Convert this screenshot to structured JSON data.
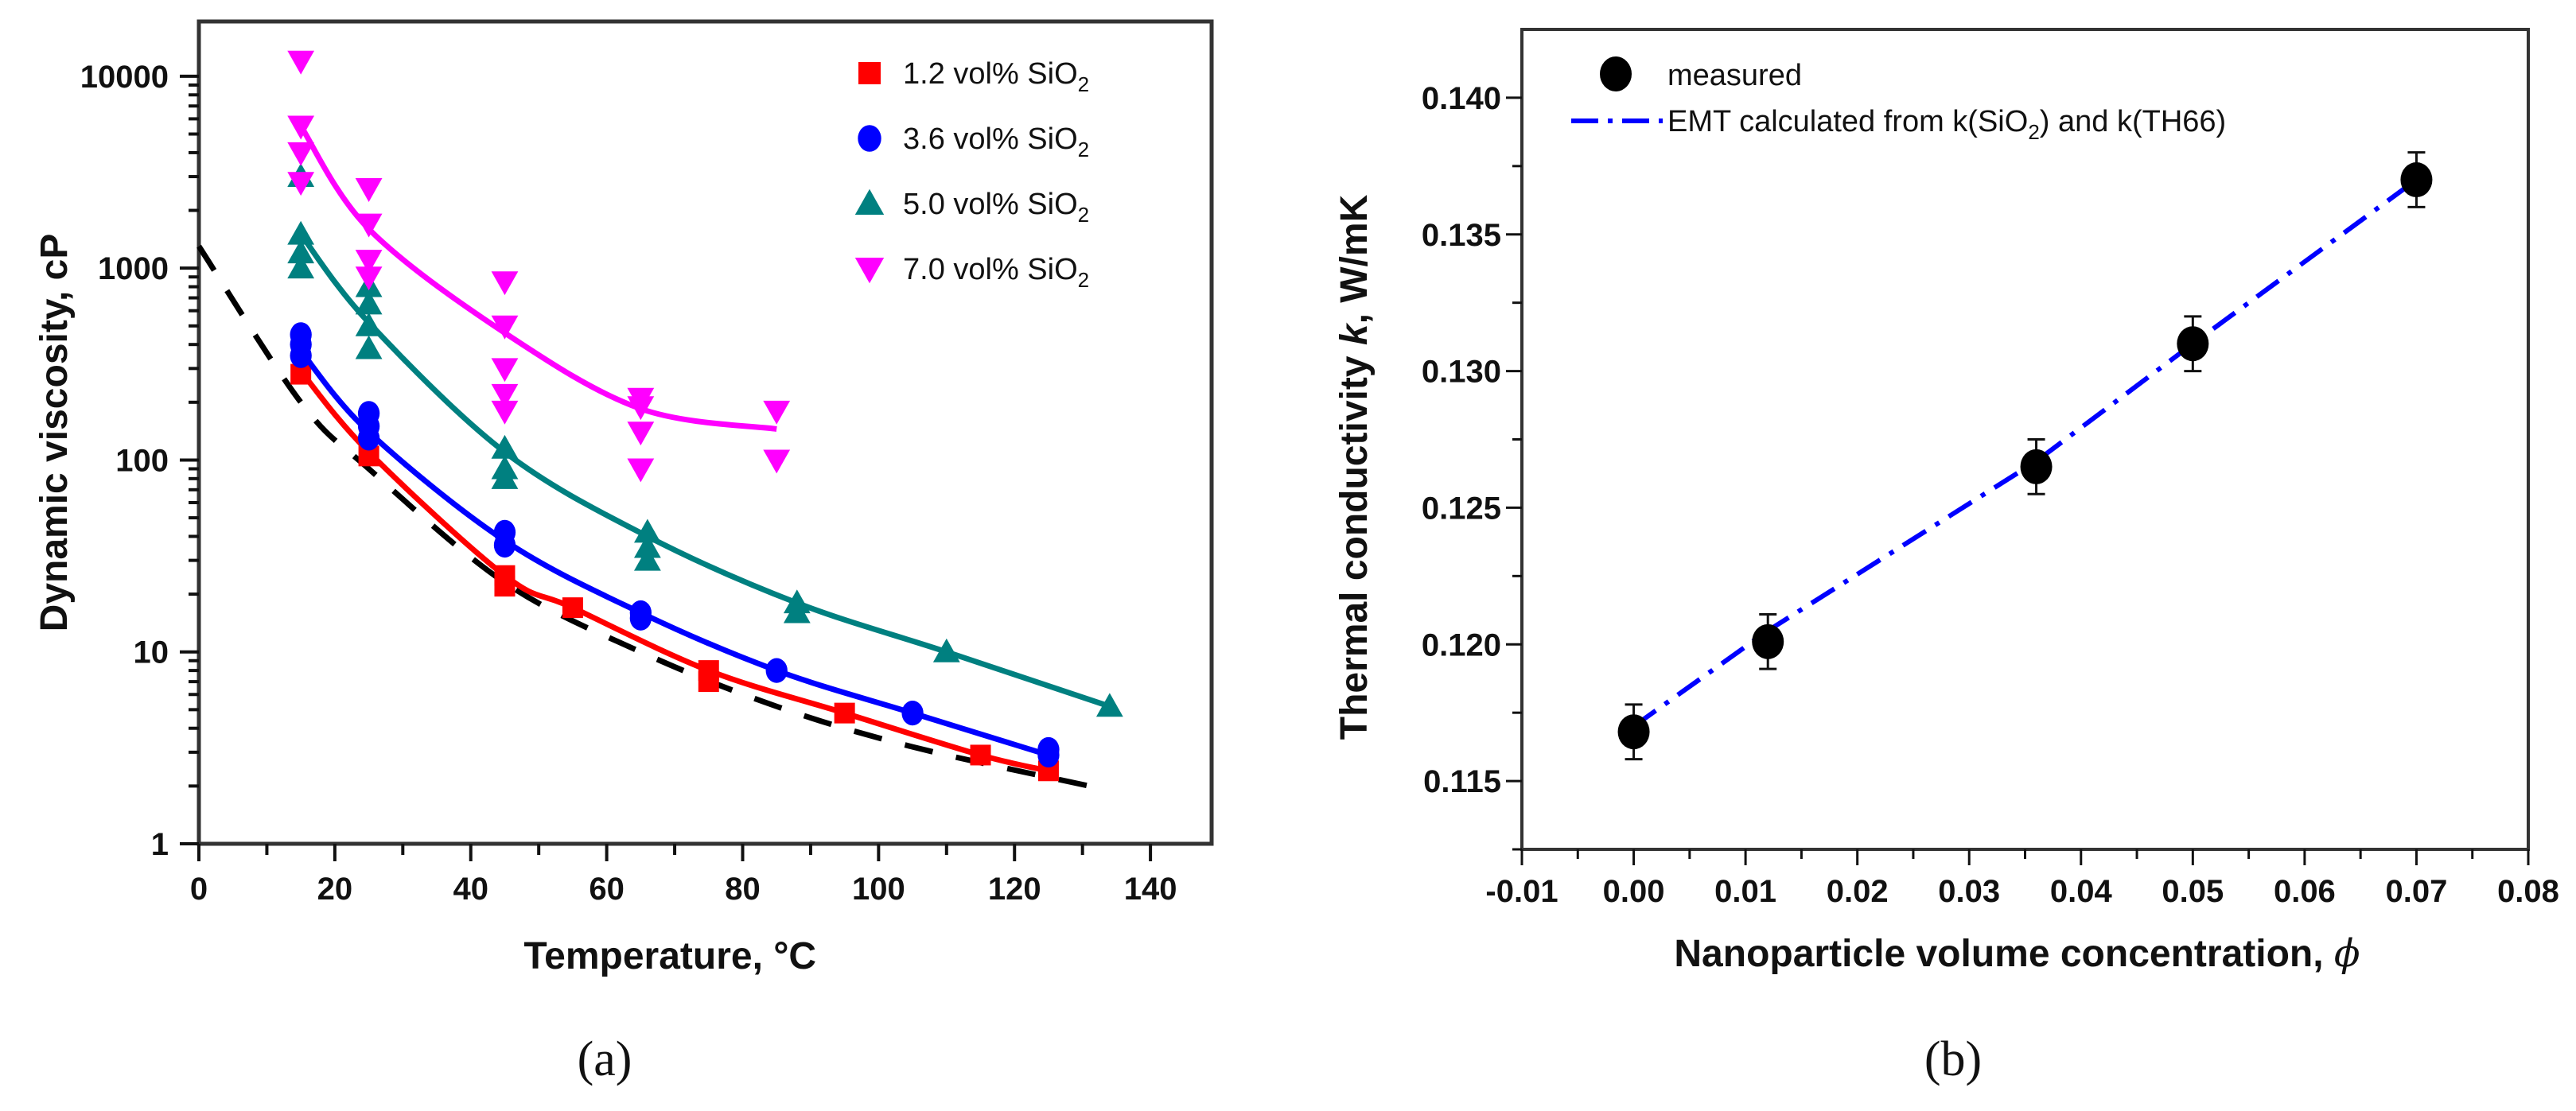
{
  "chart_data": [
    {
      "type": "scatter",
      "panel_label": "(a)",
      "title": "",
      "xlabel": "Temperature, °C",
      "ylabel": "Dynamic viscosity, cP",
      "xlim": [
        0,
        149
      ],
      "ylim": [
        1,
        19300
      ],
      "yscale": "log",
      "x_ticks": [
        0,
        20,
        40,
        60,
        80,
        100,
        120,
        140
      ],
      "y_ticks": [
        1,
        10,
        100,
        1000,
        10000
      ],
      "y_tick_labels": [
        "1",
        "10",
        "100",
        "1000",
        "10000"
      ],
      "grid": false,
      "legend_position": "top-right",
      "series": [
        {
          "name": "1.2 vol% SiO",
          "sub": "2",
          "color": "#ff0000",
          "marker": "square",
          "points": [
            [
              15,
              280
            ],
            [
              25,
              105
            ],
            [
              45,
              25
            ],
            [
              45,
              22
            ],
            [
              55,
              17
            ],
            [
              75,
              8
            ],
            [
              75,
              7
            ],
            [
              95,
              4.8
            ],
            [
              115,
              2.9
            ],
            [
              125,
              2.4
            ]
          ],
          "fit": [
            [
              15,
              290
            ],
            [
              25,
              110
            ],
            [
              45,
              25
            ],
            [
              55,
              17
            ],
            [
              75,
              8
            ],
            [
              95,
              4.8
            ],
            [
              115,
              2.9
            ],
            [
              125,
              2.4
            ]
          ]
        },
        {
          "name": "3.6 vol% SiO",
          "sub": "2",
          "color": "#0000ff",
          "marker": "circle",
          "points": [
            [
              15,
              450
            ],
            [
              15,
              400
            ],
            [
              15,
              350
            ],
            [
              25,
              175
            ],
            [
              25,
              150
            ],
            [
              25,
              130
            ],
            [
              45,
              42
            ],
            [
              45,
              36
            ],
            [
              65,
              16
            ],
            [
              65,
              15
            ],
            [
              85,
              8
            ],
            [
              105,
              4.8
            ],
            [
              125,
              3.1
            ],
            [
              125,
              2.9
            ]
          ],
          "fit": [
            [
              15,
              370
            ],
            [
              25,
              140
            ],
            [
              45,
              38
            ],
            [
              65,
              16
            ],
            [
              85,
              8
            ],
            [
              105,
              4.8
            ],
            [
              125,
              2.9
            ]
          ]
        },
        {
          "name": "5.0 vol% SiO",
          "sub": "2",
          "color": "#008080",
          "marker": "triangle-up",
          "points": [
            [
              15,
              3000
            ],
            [
              15,
              1500
            ],
            [
              15,
              1200
            ],
            [
              15,
              1000
            ],
            [
              25,
              800
            ],
            [
              25,
              650
            ],
            [
              25,
              500
            ],
            [
              25,
              380
            ],
            [
              45,
              115
            ],
            [
              45,
              90
            ],
            [
              45,
              80
            ],
            [
              66,
              42
            ],
            [
              66,
              35
            ],
            [
              66,
              30
            ],
            [
              88,
              18
            ],
            [
              88,
              16
            ],
            [
              110,
              10
            ],
            [
              134,
              5.2
            ]
          ],
          "fit": [
            [
              15,
              1500
            ],
            [
              25,
              520
            ],
            [
              45,
              110
            ],
            [
              66,
              40
            ],
            [
              88,
              18
            ],
            [
              110,
              10
            ],
            [
              134,
              5.2
            ]
          ]
        },
        {
          "name": "7.0 vol% SiO",
          "sub": "2",
          "color": "#ff00ff",
          "marker": "triangle-down",
          "points": [
            [
              15,
              12000
            ],
            [
              15,
              5500
            ],
            [
              15,
              4000
            ],
            [
              15,
              2800
            ],
            [
              25,
              2600
            ],
            [
              25,
              1700
            ],
            [
              25,
              1100
            ],
            [
              25,
              900
            ],
            [
              45,
              850
            ],
            [
              45,
              500
            ],
            [
              45,
              300
            ],
            [
              45,
              220
            ],
            [
              45,
              180
            ],
            [
              65,
              210
            ],
            [
              65,
              190
            ],
            [
              65,
              140
            ],
            [
              65,
              90
            ],
            [
              85,
              180
            ],
            [
              85,
              100
            ]
          ],
          "fit": [
            [
              15,
              5500
            ],
            [
              25,
              1600
            ],
            [
              45,
              460
            ],
            [
              65,
              185
            ],
            [
              85,
              145
            ]
          ]
        }
      ],
      "reference_curve": {
        "style": "dashed",
        "color": "#000000",
        "points": [
          [
            0,
            1300
          ],
          [
            15,
            200
          ],
          [
            25,
            90
          ],
          [
            45,
            23
          ],
          [
            65,
            10
          ],
          [
            85,
            5.2
          ],
          [
            105,
            3.2
          ],
          [
            131,
            2
          ]
        ]
      }
    },
    {
      "type": "scatter",
      "panel_label": "(b)",
      "title": "",
      "xlabel": "Nanoparticle volume concentration, ",
      "xlabel_symbol": "ϕ",
      "ylabel_pre": "Thermal conductivity ",
      "ylabel_k": "k",
      "ylabel_post": ",  W/mK",
      "xlim": [
        -0.01,
        0.08
      ],
      "ylim": [
        0.1125,
        0.1425
      ],
      "x_ticks": [
        -0.01,
        0.0,
        0.01,
        0.02,
        0.03,
        0.04,
        0.05,
        0.06,
        0.07,
        0.08
      ],
      "x_tick_labels": [
        "-0.01",
        "0.00",
        "0.01",
        "0.02",
        "0.03",
        "0.04",
        "0.05",
        "0.06",
        "0.07",
        "0.08"
      ],
      "y_ticks": [
        0.115,
        0.12,
        0.125,
        0.13,
        0.135,
        0.14
      ],
      "y_tick_labels": [
        "0.115",
        "0.120",
        "0.125",
        "0.130",
        "0.135",
        "0.140"
      ],
      "grid": false,
      "legend_position": "top-left",
      "measured": {
        "name": "measured",
        "color": "#000000",
        "x": [
          0.0,
          0.012,
          0.036,
          0.05,
          0.07
        ],
        "y": [
          0.1168,
          0.1201,
          0.1265,
          0.131,
          0.137
        ],
        "err": [
          0.001,
          0.001,
          0.001,
          0.001,
          0.001
        ]
      },
      "emt": {
        "name_pre": "EMT calculated from k(SiO",
        "name_sub": "2",
        "name_post": ") and k(TH66)",
        "color": "#0000ff",
        "x": [
          0.0,
          0.012,
          0.036,
          0.05,
          0.07
        ],
        "y": [
          0.117,
          0.1205,
          0.1267,
          0.131,
          0.137
        ]
      }
    }
  ]
}
